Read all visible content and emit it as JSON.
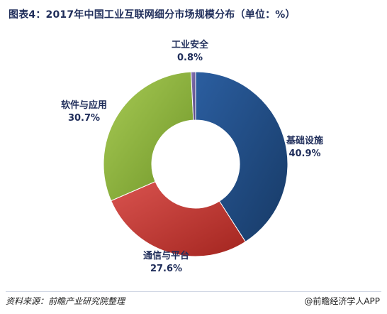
{
  "chart_data": {
    "type": "pie",
    "title": "图表4：2017年中国工业互联网细分市场规模分布（单位：%）",
    "categories": [
      "基础设施",
      "通信与平台",
      "软件与应用",
      "工业安全"
    ],
    "values": [
      40.9,
      27.6,
      30.7,
      0.8
    ],
    "value_labels": [
      "40.9%",
      "27.6%",
      "30.7%",
      "0.8%"
    ],
    "colors": [
      "#1f497d",
      "#c0392b",
      "#8db33b",
      "#6b5b9a"
    ],
    "donut": true
  },
  "footer": {
    "source": "资料来源：前瞻产业研究院整理",
    "watermark": "@前瞻经济学人APP"
  }
}
